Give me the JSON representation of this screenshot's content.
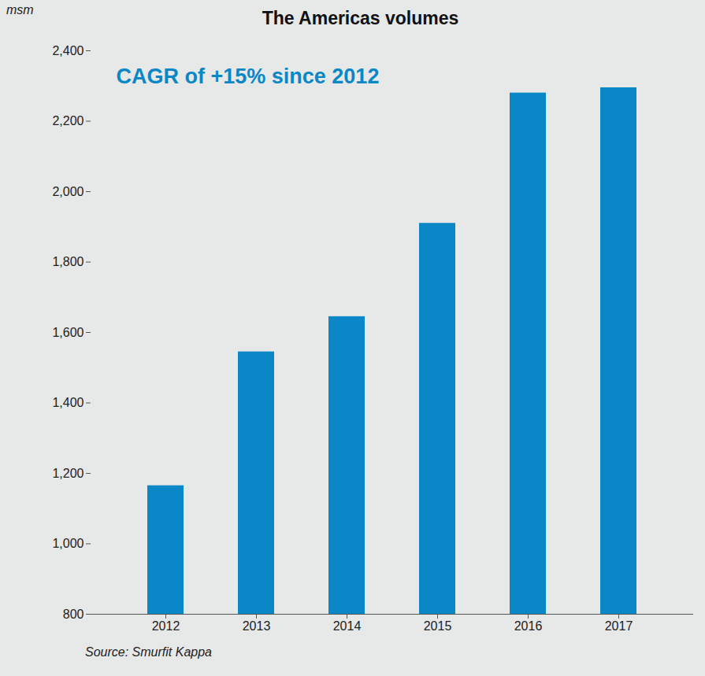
{
  "chart_data": {
    "type": "bar",
    "title": "The Americas volumes",
    "y_label": "msm",
    "annotation": "CAGR of +15% since 2012",
    "source": "Source: Smurfit Kappa",
    "categories": [
      "2012",
      "2013",
      "2014",
      "2015",
      "2016",
      "2017"
    ],
    "values": [
      1165,
      1545,
      1645,
      1910,
      2280,
      2295
    ],
    "color": "#0a87c6",
    "ylim": [
      800,
      2400
    ],
    "yticks": [
      800,
      {
        "value": 1000,
        "label": "1,000"
      },
      {
        "value": 1200,
        "label": "1,200"
      },
      {
        "value": 1400,
        "label": "1,400"
      },
      {
        "value": 1600,
        "label": "1,600"
      },
      {
        "value": 1800,
        "label": "1,800"
      },
      {
        "value": 2000,
        "label": "2,000"
      },
      {
        "value": 2200,
        "label": "2,200"
      },
      {
        "value": 2400,
        "label": "2,400"
      }
    ],
    "grid": false
  }
}
